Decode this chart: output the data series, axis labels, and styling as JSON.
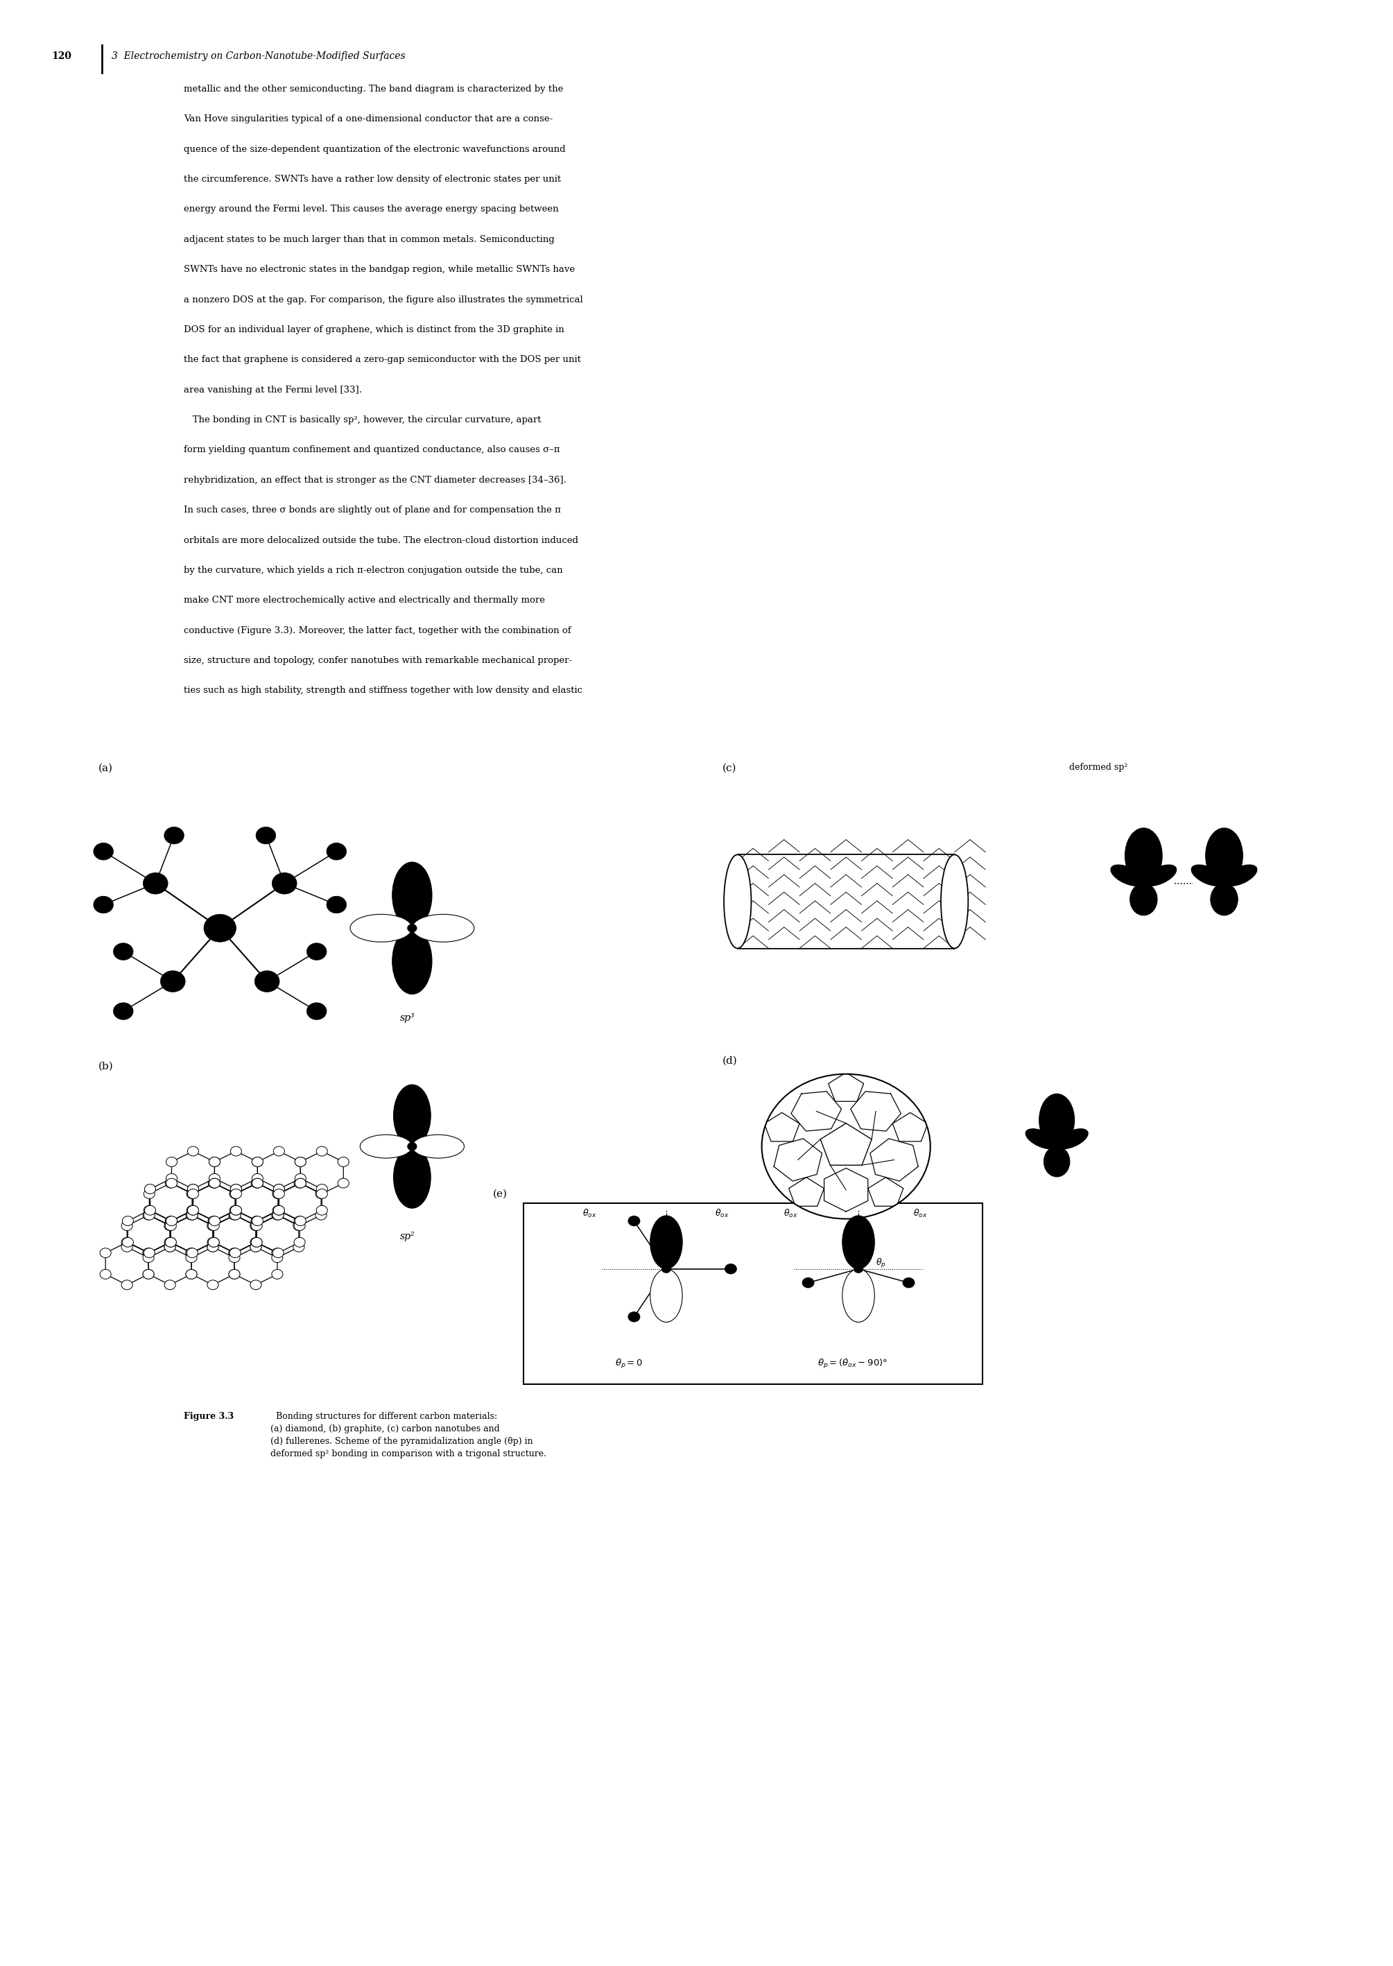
{
  "page_number": "120",
  "chapter_header": "3  Electrochemistry on Carbon-Nanotube-Modified Surfaces",
  "body_text_1": [
    "metallic and the other semiconducting. The band diagram is characterized by the",
    "Van Hove singularities typical of a one-dimensional conductor that are a conse-",
    "quence of the size-dependent quantization of the electronic wavefunctions around",
    "the circumference. SWNTs have a rather low density of electronic states per unit",
    "energy around the Fermi level. This causes the average energy spacing between",
    "adjacent states to be much larger than that in common metals. Semiconducting",
    "SWNTs have no electronic states in the bandgap region, while metallic SWNTs have",
    "a nonzero DOS at the gap. For comparison, the figure also illustrates the symmetrical",
    "DOS for an individual layer of graphene, which is distinct from the 3D graphite in",
    "the fact that graphene is considered a zero-gap semiconductor with the DOS per unit",
    "area vanishing at the Fermi level [33]."
  ],
  "body_text_2": [
    "   The bonding in CNT is basically sp², however, the circular curvature, apart",
    "form yielding quantum confinement and quantized conductance, also causes σ–π",
    "rehybridization, an effect that is stronger as the CNT diameter decreases [34–36].",
    "In such cases, three σ bonds are slightly out of plane and for compensation the π",
    "orbitals are more delocalized outside the tube. The electron-cloud distortion induced",
    "by the curvature, which yields a rich π-electron conjugation outside the tube, can",
    "make CNT more electrochemically active and electrically and thermally more",
    "conductive (Figure 3.3). Moreover, the latter fact, together with the combination of",
    "size, structure and topology, confer nanotubes with remarkable mechanical proper-",
    "ties such as high stability, strength and stiffness together with low density and elastic"
  ],
  "caption_bold": "Figure 3.3",
  "caption_rest": "  Bonding structures for different carbon materials:\n(a) diamond, (b) graphite, (c) carbon nanotubes and\n(d) fullerenes. Scheme of the pyramidalization angle (θp) in\ndeformed sp² bonding in comparison with a trigonal structure.",
  "label_a": "(a)",
  "label_b": "(b)",
  "label_c": "(c)",
  "label_d": "(d)",
  "label_e": "(e)",
  "label_sp3": "sp³",
  "label_sp2": "sp²",
  "label_deformed_sp2": "deformed sp²",
  "bg_color": "#ffffff",
  "text_color": "#000000"
}
